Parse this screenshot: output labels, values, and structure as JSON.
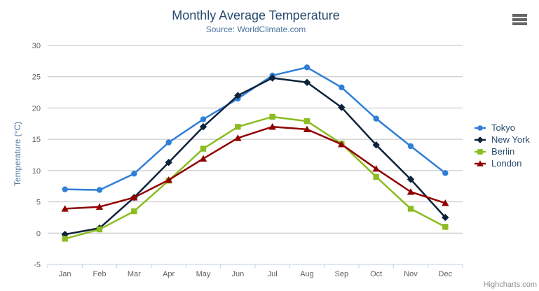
{
  "palette": {
    "background": "#ffffff",
    "title_color": "#274b6d",
    "subtitle_color": "#4d759e",
    "axis_title_color": "#4d759e",
    "axis_label_color": "#606060",
    "grid_color": "#c0c0c0",
    "axis_line_color": "#c0d0e0",
    "legend_text_color": "#274b6d",
    "credits_color": "#909090",
    "hamburger_color": "#666666"
  },
  "icons": {
    "export_menu": "hamburger-icon"
  },
  "chart_data": {
    "type": "line",
    "title": "Monthly Average Temperature",
    "subtitle": "Source: WorldClimate.com",
    "xlabel": "",
    "ylabel": "Temperature (°C)",
    "categories": [
      "Jan",
      "Feb",
      "Mar",
      "Apr",
      "May",
      "Jun",
      "Jul",
      "Aug",
      "Sep",
      "Oct",
      "Nov",
      "Dec"
    ],
    "ylim": [
      -5,
      30
    ],
    "ytick_interval": 5,
    "yticks": [
      -5,
      0,
      5,
      10,
      15,
      20,
      25,
      30
    ],
    "grid": true,
    "legend_position": "right",
    "credits": "Highcharts.com",
    "series": [
      {
        "name": "Tokyo",
        "color": "#2f7ed8",
        "marker": "circle",
        "values": [
          7.0,
          6.9,
          9.5,
          14.5,
          18.2,
          21.5,
          25.2,
          26.5,
          23.3,
          18.3,
          13.9,
          9.6
        ]
      },
      {
        "name": "New York",
        "color": "#0d233a",
        "marker": "diamond",
        "values": [
          -0.2,
          0.8,
          5.7,
          11.3,
          17.0,
          22.0,
          24.8,
          24.1,
          20.1,
          14.1,
          8.6,
          2.5
        ]
      },
      {
        "name": "Berlin",
        "color": "#8bbc21",
        "marker": "square",
        "values": [
          -0.9,
          0.6,
          3.5,
          8.4,
          13.5,
          17.0,
          18.6,
          17.9,
          14.3,
          9.0,
          3.9,
          1.0
        ]
      },
      {
        "name": "London",
        "color": "#910000",
        "marker": "triangle",
        "values": [
          3.9,
          4.2,
          5.7,
          8.5,
          11.9,
          15.2,
          17.0,
          16.6,
          14.2,
          10.3,
          6.6,
          4.8
        ]
      }
    ]
  }
}
